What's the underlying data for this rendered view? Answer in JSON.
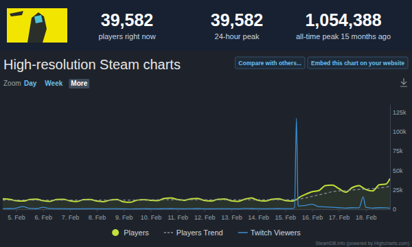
{
  "header": {
    "stats": [
      {
        "value": "39,582",
        "label": "players right now"
      },
      {
        "value": "39,582",
        "label": "24-hour peak"
      },
      {
        "value": "1,054,388",
        "label": "all-time peak 15 months ago"
      }
    ]
  },
  "page": {
    "title": "High-resolution Steam charts",
    "buttons": [
      "Compare with others...",
      "Embed this chart on your website"
    ],
    "zoom": {
      "label": "Zoom",
      "options": [
        "Day",
        "Week",
        "More"
      ],
      "selected": "More"
    },
    "credits": "SteamDB.info (powered by Highcharts.com)"
  },
  "chart_data": {
    "type": "line",
    "x": [
      4.5,
      4.75,
      5,
      5.25,
      5.5,
      5.75,
      6,
      6.25,
      6.5,
      6.75,
      7,
      7.25,
      7.5,
      7.75,
      8,
      8.25,
      8.5,
      8.75,
      9,
      9.25,
      9.5,
      9.75,
      10,
      10.25,
      10.5,
      10.75,
      11,
      11.25,
      11.5,
      11.75,
      12,
      12.25,
      12.5,
      12.75,
      13,
      13.25,
      13.5,
      13.75,
      14,
      14.25,
      14.5,
      14.75,
      15,
      15.25,
      15.35,
      15.42,
      15.48,
      15.5,
      15.75,
      16,
      16.25,
      16.5,
      16.75,
      17,
      17.25,
      17.5,
      17.75,
      17.9,
      18,
      18.25,
      18.5,
      18.75,
      18.9
    ],
    "xlim": [
      4.5,
      18.9
    ],
    "xticks": [
      {
        "value": 5,
        "label": "5. Feb"
      },
      {
        "value": 6,
        "label": "6. Feb"
      },
      {
        "value": 7,
        "label": "7. Feb"
      },
      {
        "value": 8,
        "label": "8. Feb"
      },
      {
        "value": 9,
        "label": "9. Feb"
      },
      {
        "value": 10,
        "label": "10. Feb"
      },
      {
        "value": 11,
        "label": "11. Feb"
      },
      {
        "value": 12,
        "label": "12. Feb"
      },
      {
        "value": 13,
        "label": "13. Feb"
      },
      {
        "value": 14,
        "label": "14. Feb"
      },
      {
        "value": 15,
        "label": "15. Feb"
      },
      {
        "value": 16,
        "label": "16. Feb"
      },
      {
        "value": 17,
        "label": "17. Feb"
      },
      {
        "value": 18,
        "label": "18. Feb"
      }
    ],
    "ylim": [
      0,
      135000
    ],
    "yticks": [
      0,
      {
        "value": 25000,
        "label": "25k"
      },
      {
        "value": 50000,
        "label": "50k"
      },
      {
        "value": 75000,
        "label": "75k"
      },
      {
        "value": 100000,
        "label": "100k"
      },
      {
        "value": 125000,
        "label": "125k"
      }
    ],
    "grid": false,
    "legend": "bottom",
    "series": [
      {
        "name": "Players",
        "type": "area",
        "color": "#c3e03a",
        "line_style": "solid",
        "values": [
          13500,
          12800,
          11000,
          10500,
          12500,
          13000,
          11000,
          10200,
          12600,
          12900,
          10800,
          10000,
          12300,
          12600,
          10500,
          9800,
          12000,
          12500,
          9500,
          9000,
          11800,
          12400,
          11500,
          11000,
          13800,
          14500,
          12500,
          11500,
          13500,
          14000,
          11200,
          10500,
          12800,
          13200,
          10800,
          10200,
          13000,
          14600,
          11500,
          10600,
          12700,
          13500,
          11200,
          10500,
          11500,
          12500,
          13800,
          14500,
          19000,
          22500,
          24000,
          30500,
          31000,
          26500,
          22000,
          28000,
          30500,
          27500,
          25500,
          23500,
          31500,
          32500,
          39582
        ]
      },
      {
        "name": "Players Trend",
        "type": "line",
        "color": "#8a9098",
        "line_style": "dashed",
        "values": [
          11800,
          11800,
          11800,
          11800,
          11800,
          11800,
          11800,
          11800,
          11800,
          11800,
          11800,
          11800,
          11800,
          11800,
          11800,
          11800,
          11800,
          11800,
          11800,
          11800,
          11800,
          11800,
          12300,
          12300,
          12300,
          12300,
          12300,
          12300,
          12300,
          12300,
          12300,
          12300,
          12300,
          12300,
          12300,
          12300,
          12300,
          12300,
          12300,
          12300,
          12300,
          12300,
          12300,
          12300,
          12500,
          12700,
          12900,
          13000,
          14500,
          16500,
          18500,
          20500,
          22500,
          23500,
          24000,
          24800,
          25500,
          25800,
          26000,
          26500,
          27500,
          28500,
          29500
        ]
      },
      {
        "name": "Twitch Viewers",
        "type": "line",
        "color": "#3d8fd6",
        "line_style": "solid",
        "values": [
          800,
          900,
          1500,
          3500,
          1200,
          900,
          2500,
          1000,
          800,
          700,
          600,
          500,
          700,
          800,
          600,
          500,
          700,
          700,
          500,
          400,
          600,
          700,
          600,
          500,
          800,
          900,
          700,
          600,
          800,
          900,
          600,
          500,
          700,
          800,
          600,
          500,
          1200,
          900,
          700,
          600,
          800,
          900,
          700,
          800,
          2000,
          117000,
          6000,
          4000,
          5000,
          6500,
          3500,
          3000,
          2500,
          2000,
          1500,
          2000,
          1800,
          16000,
          2500,
          1500,
          2000,
          1800,
          1500
        ]
      }
    ]
  }
}
